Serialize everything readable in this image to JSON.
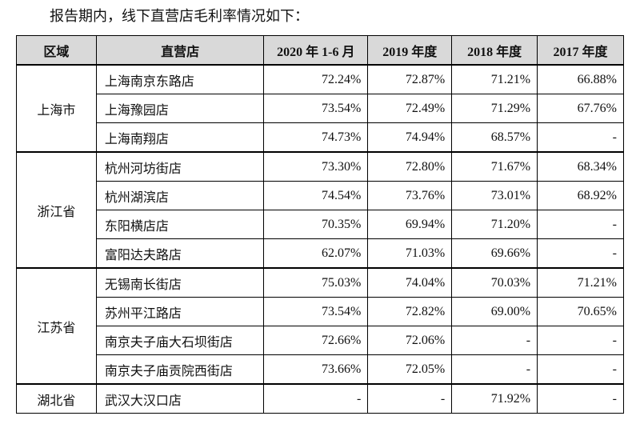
{
  "intro": "报告期内，线下直营店毛利率情况如下：",
  "table": {
    "headers": [
      "区域",
      "直营店",
      "2020 年 1-6 月",
      "2019 年度",
      "2018 年度",
      "2017 年度"
    ],
    "groups": [
      {
        "region": "上海市",
        "rows": [
          {
            "store": "上海南京东路店",
            "values": [
              "72.24%",
              "72.87%",
              "71.21%",
              "66.88%"
            ]
          },
          {
            "store": "上海豫园店",
            "values": [
              "73.54%",
              "72.49%",
              "71.29%",
              "67.76%"
            ]
          },
          {
            "store": "上海南翔店",
            "values": [
              "74.73%",
              "74.94%",
              "68.57%",
              "-"
            ]
          }
        ]
      },
      {
        "region": "浙江省",
        "rows": [
          {
            "store": "杭州河坊街店",
            "values": [
              "73.30%",
              "72.80%",
              "71.67%",
              "68.34%"
            ]
          },
          {
            "store": "杭州湖滨店",
            "values": [
              "74.54%",
              "73.76%",
              "73.01%",
              "68.92%"
            ]
          },
          {
            "store": "东阳横店店",
            "values": [
              "70.35%",
              "69.94%",
              "71.20%",
              "-"
            ]
          },
          {
            "store": "富阳达夫路店",
            "values": [
              "62.07%",
              "71.03%",
              "69.66%",
              "-"
            ]
          }
        ]
      },
      {
        "region": "江苏省",
        "rows": [
          {
            "store": "无锡南长街店",
            "values": [
              "75.03%",
              "74.04%",
              "70.03%",
              "71.21%"
            ]
          },
          {
            "store": "苏州平江路店",
            "values": [
              "73.54%",
              "72.82%",
              "69.00%",
              "70.65%"
            ]
          },
          {
            "store": "南京夫子庙大石坝街店",
            "values": [
              "72.66%",
              "72.06%",
              "-",
              "-"
            ]
          },
          {
            "store": "南京夫子庙贡院西街店",
            "values": [
              "73.66%",
              "72.05%",
              "-",
              "-"
            ]
          }
        ]
      },
      {
        "region": "湖北省",
        "rows": [
          {
            "store": "武汉大汉口店",
            "values": [
              "-",
              "-",
              "71.92%",
              "-"
            ]
          }
        ]
      }
    ]
  }
}
